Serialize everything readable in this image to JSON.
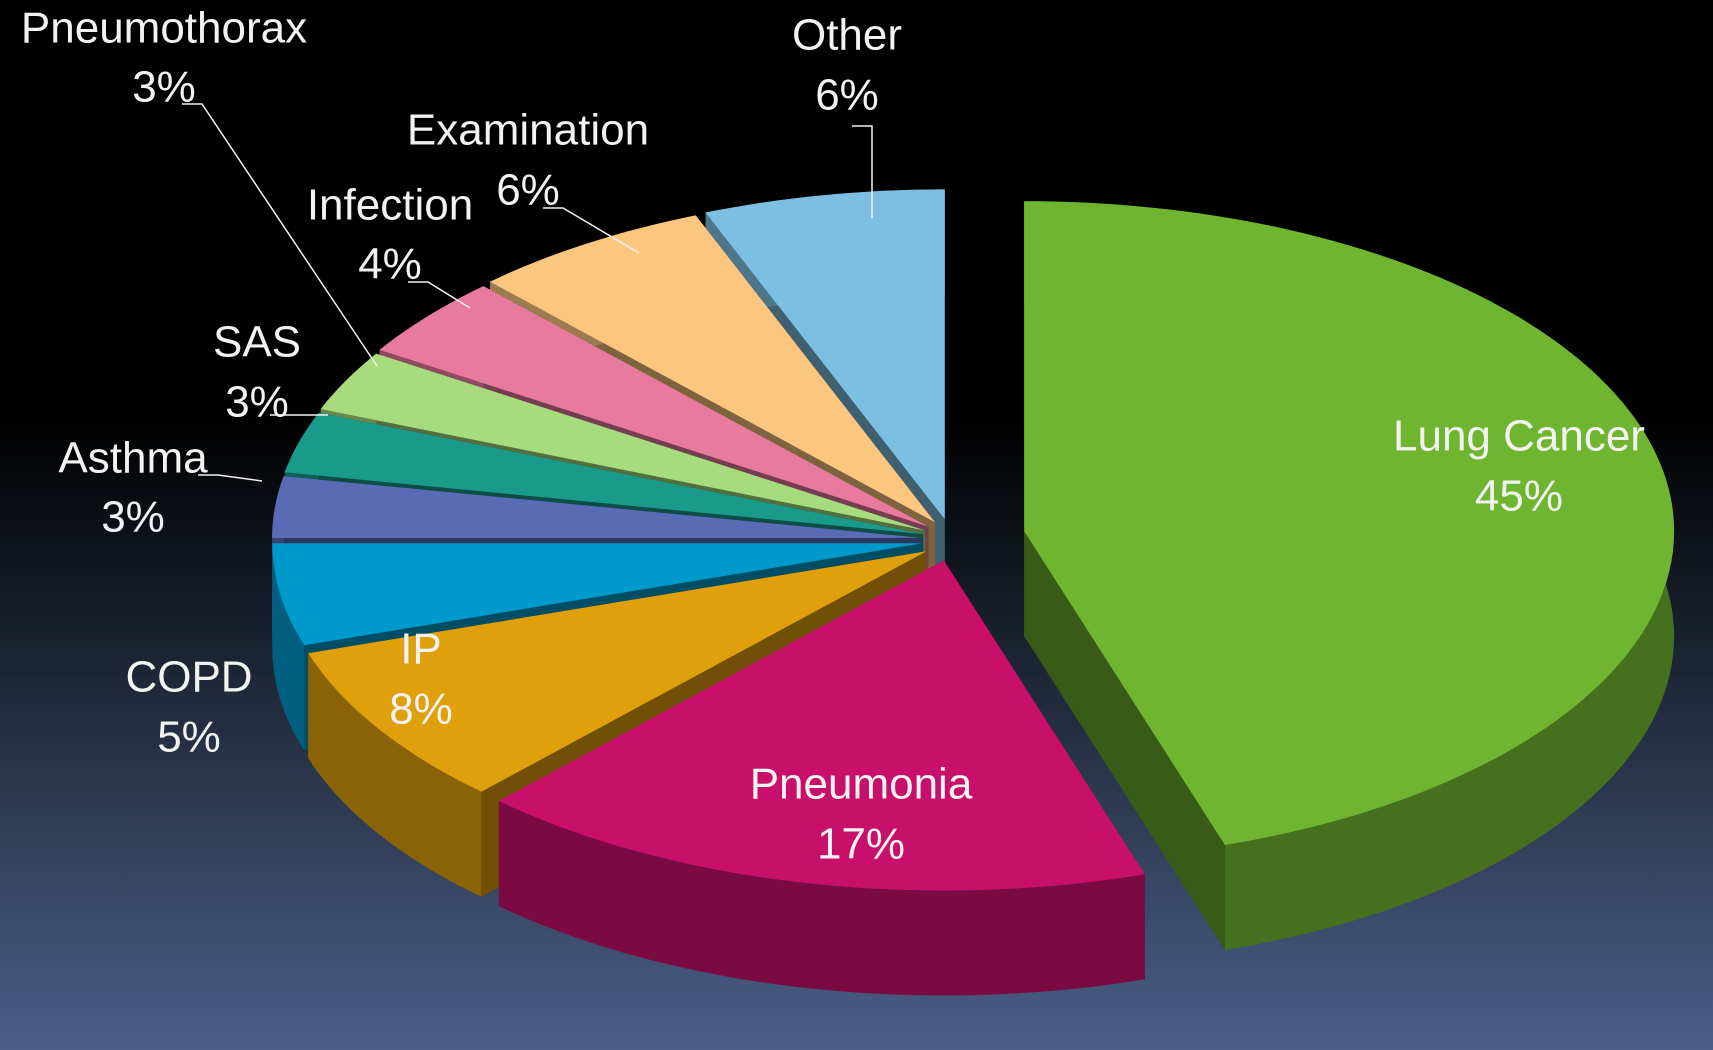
{
  "chart_data": {
    "type": "pie3d",
    "categories": [
      "Lung Cancer",
      "Pneumonia",
      "IP",
      "COPD",
      "Asthma",
      "SAS",
      "Pneumothorax",
      "Infection",
      "Examination",
      "Other"
    ],
    "values": [
      45,
      17,
      8,
      5,
      3,
      3,
      3,
      4,
      6,
      6
    ],
    "value_labels": [
      "45%",
      "17%",
      "8%",
      "5%",
      "3%",
      "3%",
      "3%",
      "4%",
      "6%",
      "6%"
    ],
    "colors": [
      "#6fb52f",
      "#c8106a",
      "#e0a00c",
      "#0099cc",
      "#5a6bb5",
      "#1a9a8a",
      "#a6dc7e",
      "#e8799f",
      "#fcc67e",
      "#7dbfe0"
    ]
  }
}
